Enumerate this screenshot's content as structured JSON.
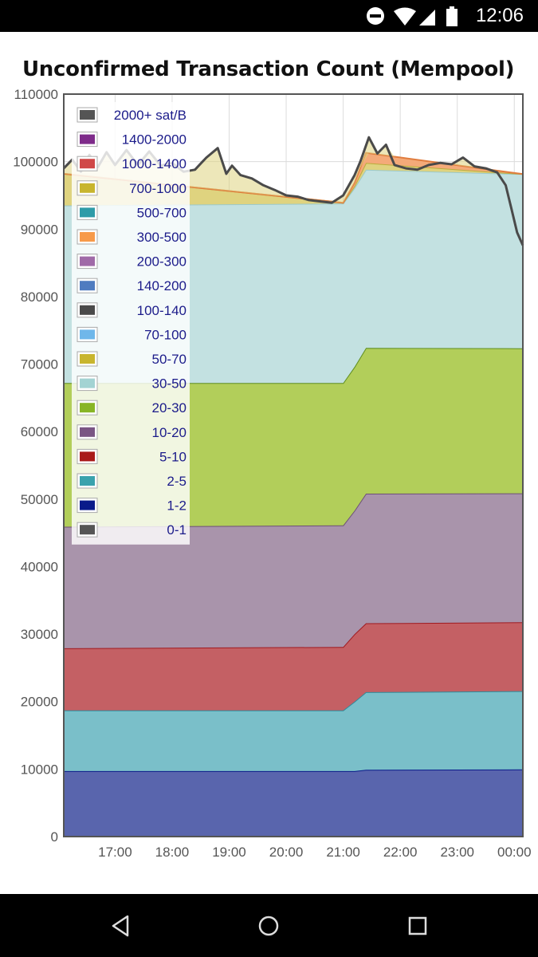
{
  "status_bar": {
    "time": "12:06",
    "icons": [
      "do-not-disturb-icon",
      "wifi-icon",
      "signal-icon",
      "battery-icon"
    ]
  },
  "navigation_bar": {
    "buttons": [
      "back-icon",
      "home-icon",
      "recents-icon"
    ]
  },
  "chart_data": {
    "type": "area",
    "stacked": true,
    "title": "Unconfirmed Transaction Count (Mempool)",
    "xlabel": "",
    "ylabel": "",
    "ylim": [
      0,
      110000
    ],
    "yticks": [
      0,
      10000,
      20000,
      30000,
      40000,
      50000,
      60000,
      70000,
      80000,
      90000,
      100000,
      110000
    ],
    "xlim": [
      16.1,
      24.15
    ],
    "xticks": [
      17,
      18,
      19,
      20,
      21,
      22,
      23,
      24
    ],
    "xtick_labels": [
      "17:00",
      "18:00",
      "19:00",
      "20:00",
      "21:00",
      "22:00",
      "23:00",
      "00:00"
    ],
    "grid": true,
    "legend_position": "top-left",
    "x": [
      16.1,
      21.0,
      21.2,
      21.4,
      24.15
    ],
    "series": [
      {
        "name": "1-2",
        "color": "#5965ad",
        "line": "#0a1a8a",
        "values": [
          9700,
          9700,
          9700,
          9900,
          9950
        ]
      },
      {
        "name": "2-5",
        "color": "#7abfc9",
        "line": "#2e8b9a",
        "values": [
          9000,
          9000,
          10300,
          11500,
          11600
        ]
      },
      {
        "name": "5-10",
        "color": "#c46064",
        "line": "#a01a20",
        "values": [
          9200,
          9400,
          10000,
          10200,
          10200
        ]
      },
      {
        "name": "10-20",
        "color": "#a994ab",
        "line": "#6d4f78",
        "values": [
          18000,
          18000,
          18300,
          19200,
          19100
        ]
      },
      {
        "name": "20-30",
        "color": "#b2ce5a",
        "line": "#5f8e20",
        "values": [
          21300,
          21100,
          21300,
          21600,
          21500
        ]
      },
      {
        "name": "30-50",
        "color": "#c3e1e1",
        "line": "#9cc9c9",
        "values": [
          26300,
          26600,
          26500,
          26400,
          25800
        ]
      },
      {
        "name": "700-1000",
        "color": "#dfd37f",
        "line": "#bbac3c",
        "values": [
          4700,
          100,
          300,
          1000,
          0
        ]
      },
      {
        "name": "1000-1400 / 300-500 / 2000+ sat/B",
        "color": "#f4aa79",
        "line": "#e07c3e",
        "values": [
          0,
          0,
          500,
          1500,
          0
        ]
      }
    ],
    "total_line": {
      "name": "total",
      "color": "#4a4a4a",
      "x": [
        16.1,
        16.25,
        16.4,
        16.55,
        16.7,
        16.85,
        17.0,
        17.2,
        17.4,
        17.6,
        17.8,
        18.0,
        18.2,
        18.4,
        18.6,
        18.8,
        18.95,
        19.05,
        19.2,
        19.4,
        19.6,
        19.8,
        20.0,
        20.2,
        20.4,
        20.6,
        20.8,
        21.0,
        21.1,
        21.2,
        21.3,
        21.45,
        21.6,
        21.75,
        21.9,
        22.1,
        22.3,
        22.5,
        22.7,
        22.9,
        23.1,
        23.3,
        23.5,
        23.7,
        23.85,
        23.95,
        24.05,
        24.15
      ],
      "values": [
        99000,
        100300,
        98500,
        101000,
        99200,
        101400,
        99500,
        101700,
        99500,
        101500,
        99400,
        99800,
        98500,
        98800,
        100600,
        102000,
        98200,
        99400,
        98000,
        97500,
        96500,
        95800,
        95000,
        94800,
        94300,
        94100,
        93900,
        95000,
        96500,
        98000,
        100000,
        103600,
        101200,
        102500,
        99500,
        99000,
        98800,
        99500,
        99800,
        99600,
        100600,
        99300,
        99000,
        98400,
        96500,
        93000,
        89500,
        87600
      ]
    },
    "legend": [
      "2000+ sat/B",
      "1400-2000",
      "1000-1400",
      "700-1000",
      "500-700",
      "300-500",
      "200-300",
      "140-200",
      "100-140",
      "70-100",
      "50-70",
      "30-50",
      "20-30",
      "10-20",
      "5-10",
      "2-5",
      "1-2",
      "0-1"
    ],
    "legend_colors": [
      "#555555",
      "#7e2b8a",
      "#d04848",
      "#c8b52e",
      "#2e9ba8",
      "#f79a4a",
      "#a06aa8",
      "#4f7cc0",
      "#4a4a4a",
      "#6fb7ea",
      "#c8b52e",
      "#a3d3d3",
      "#88b526",
      "#7a5584",
      "#a91919",
      "#3aa2ad",
      "#0a1a8a",
      "#555555"
    ]
  }
}
